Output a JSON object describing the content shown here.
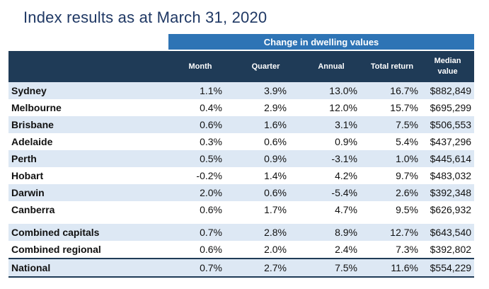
{
  "title": "Index results as at March 31, 2020",
  "group_header": "Change in dwelling values",
  "columns": [
    "Month",
    "Quarter",
    "Annual",
    "Total return",
    "Median value"
  ],
  "median_header_lines": [
    "Median",
    "value"
  ],
  "rows": [
    {
      "region": "Sydney",
      "month": "1.1%",
      "quarter": "3.9%",
      "annual": "13.0%",
      "total_return": "16.7%",
      "median": "$882,849"
    },
    {
      "region": "Melbourne",
      "month": "0.4%",
      "quarter": "2.9%",
      "annual": "12.0%",
      "total_return": "15.7%",
      "median": "$695,299"
    },
    {
      "region": "Brisbane",
      "month": "0.6%",
      "quarter": "1.6%",
      "annual": "3.1%",
      "total_return": "7.5%",
      "median": "$506,553"
    },
    {
      "region": "Adelaide",
      "month": "0.3%",
      "quarter": "0.6%",
      "annual": "0.9%",
      "total_return": "5.4%",
      "median": "$437,296"
    },
    {
      "region": "Perth",
      "month": "0.5%",
      "quarter": "0.9%",
      "annual": "-3.1%",
      "total_return": "1.0%",
      "median": "$445,614"
    },
    {
      "region": "Hobart",
      "month": "-0.2%",
      "quarter": "1.4%",
      "annual": "4.2%",
      "total_return": "9.7%",
      "median": "$483,032"
    },
    {
      "region": "Darwin",
      "month": "2.0%",
      "quarter": "0.6%",
      "annual": "-5.4%",
      "total_return": "2.6%",
      "median": "$392,348"
    },
    {
      "region": "Canberra",
      "month": "0.6%",
      "quarter": "1.7%",
      "annual": "4.7%",
      "total_return": "9.5%",
      "median": "$626,932"
    },
    {
      "region": "Combined capitals",
      "month": "0.7%",
      "quarter": "2.8%",
      "annual": "8.9%",
      "total_return": "12.7%",
      "median": "$643,540"
    },
    {
      "region": "Combined regional",
      "month": "0.6%",
      "quarter": "2.0%",
      "annual": "2.4%",
      "total_return": "7.3%",
      "median": "$392,802"
    },
    {
      "region": "National",
      "month": "0.7%",
      "quarter": "2.7%",
      "annual": "7.5%",
      "total_return": "11.6%",
      "median": "$554,229"
    }
  ],
  "colors": {
    "title": "#1f3864",
    "group_header_bg": "#2e74b5",
    "column_header_bg": "#1f3b57",
    "row_shade": "#dde8f4"
  }
}
